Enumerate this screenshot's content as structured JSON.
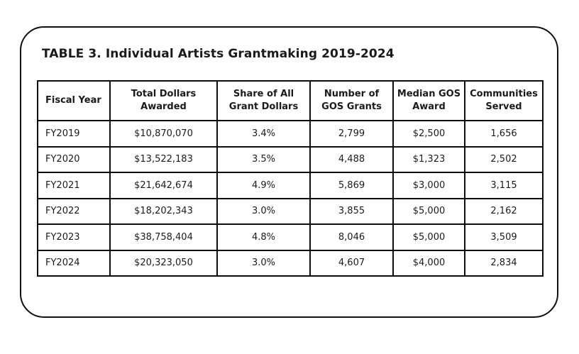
{
  "card": {
    "title": "TABLE 3. Individual Artists Grantmaking 2019-2024"
  },
  "colors": {
    "background": "#ffffff",
    "card_border": "#101010",
    "table_border": "#0c0c0c",
    "text": "#1b1b1b"
  },
  "table": {
    "headers_display": [
      "Fiscal Year",
      "Total Dollars\nAwarded",
      "Share of All\nGrant Dollars",
      "Number of\nGOS Grants",
      "Median GOS\nAward",
      "Communities\nServed"
    ]
  },
  "chart_data": {
    "type": "table",
    "title": "TABLE 3. Individual Artists Grantmaking 2019-2024",
    "columns": [
      "Fiscal Year",
      "Total Dollars Awarded",
      "Share of All Grant Dollars",
      "Number of GOS Grants",
      "Median GOS Award",
      "Communities Served"
    ],
    "rows": [
      [
        "FY2019",
        "$10,870,070",
        "3.4%",
        "2,799",
        "$2,500",
        "1,656"
      ],
      [
        "FY2020",
        "$13,522,183",
        "3.5%",
        "4,488",
        "$1,323",
        "2,502"
      ],
      [
        "FY2021",
        "$21,642,674",
        "4.9%",
        "5,869",
        "$3,000",
        "3,115"
      ],
      [
        "FY2022",
        "$18,202,343",
        "3.0%",
        "3,855",
        "$5,000",
        "2,162"
      ],
      [
        "FY2023",
        "$38,758,404",
        "4.8%",
        "8,046",
        "$5,000",
        "3,509"
      ],
      [
        "FY2024",
        "$20,323,050",
        "3.0%",
        "4,607",
        "$4,000",
        "2,834"
      ]
    ]
  }
}
